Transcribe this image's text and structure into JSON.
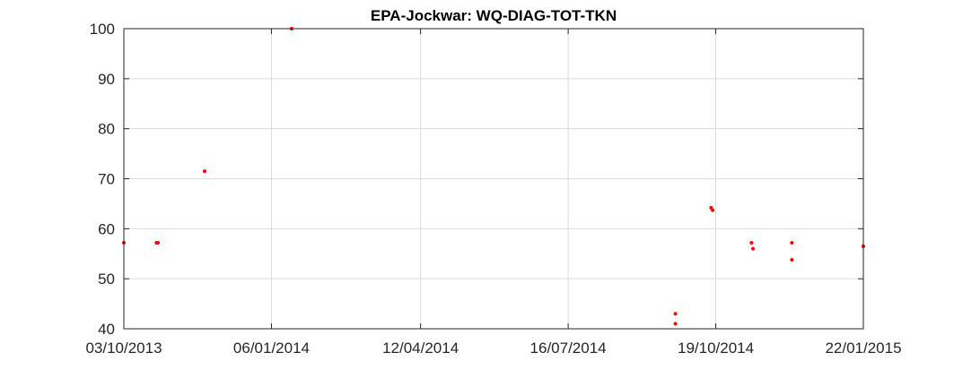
{
  "chart_data": {
    "type": "scatter",
    "title": "EPA-Jockwar: WQ-DIAG-TOT-TKN",
    "xlabel": "",
    "ylabel": "",
    "x_type": "date",
    "xlim": [
      "2013-10-03",
      "2015-01-22"
    ],
    "ylim": [
      40,
      100
    ],
    "x_ticks": [
      "2013-10-03",
      "2014-01-06",
      "2014-04-12",
      "2014-07-16",
      "2014-10-19",
      "2015-01-22"
    ],
    "x_tick_labels": [
      "03/10/2013",
      "06/01/2014",
      "12/04/2014",
      "16/07/2014",
      "19/10/2014",
      "22/01/2015"
    ],
    "y_ticks": [
      40,
      50,
      60,
      70,
      80,
      90,
      100
    ],
    "y_tick_labels": [
      "40",
      "50",
      "60",
      "70",
      "80",
      "90",
      "100"
    ],
    "grid": true,
    "marker_color": "#ff0000",
    "series": [
      {
        "points": [
          {
            "x": "2013-10-03",
            "y": 57.2
          },
          {
            "x": "2013-10-24",
            "y": 57.2
          },
          {
            "x": "2013-10-25",
            "y": 57.2
          },
          {
            "x": "2013-11-24",
            "y": 71.5
          },
          {
            "x": "2014-01-19",
            "y": 100
          },
          {
            "x": "2014-09-23",
            "y": 43
          },
          {
            "x": "2014-09-23",
            "y": 41
          },
          {
            "x": "2014-10-16",
            "y": 64.2
          },
          {
            "x": "2014-10-17",
            "y": 63.7
          },
          {
            "x": "2014-11-11",
            "y": 57.2
          },
          {
            "x": "2014-11-12",
            "y": 56
          },
          {
            "x": "2014-12-07",
            "y": 57.2
          },
          {
            "x": "2014-12-07",
            "y": 53.8
          },
          {
            "x": "2015-01-22",
            "y": 56.5
          }
        ]
      }
    ]
  }
}
